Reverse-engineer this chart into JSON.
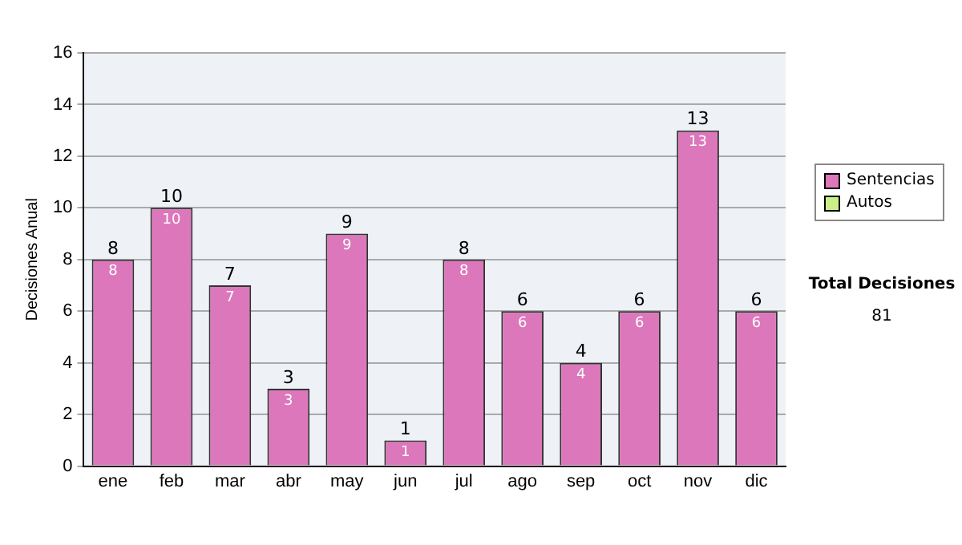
{
  "chart_data": {
    "type": "bar",
    "stacked": true,
    "ylabel": "Decisiones Anual",
    "categories": [
      "ene",
      "feb",
      "mar",
      "abr",
      "may",
      "jun",
      "jul",
      "ago",
      "sep",
      "oct",
      "nov",
      "dic"
    ],
    "series": [
      {
        "name": "Sentencias",
        "color": "#dd77bb",
        "values": [
          8,
          10,
          7,
          3,
          9,
          1,
          8,
          6,
          4,
          6,
          13,
          6
        ],
        "value_labels": [
          "8",
          "10",
          "7",
          "3",
          "9",
          "1",
          "8",
          "6",
          "4",
          "6",
          "13",
          "6"
        ]
      },
      {
        "name": "Autos",
        "color": "#ccee88",
        "values": [
          0,
          0,
          0,
          0,
          0,
          0,
          0,
          0,
          0,
          0,
          0,
          0
        ],
        "value_labels": [
          null,
          null,
          null,
          null,
          null,
          null,
          null,
          null,
          null,
          null,
          null,
          null
        ]
      }
    ],
    "totals": [
      "8",
      "10",
      "7",
      "3",
      "9",
      "1",
      "8",
      "6",
      "4",
      "6",
      "13",
      "6"
    ],
    "ylim": [
      0,
      16
    ],
    "yticks": [
      0,
      2,
      4,
      6,
      8,
      10,
      12,
      14,
      16
    ],
    "grid": "y",
    "legend": "right",
    "annotations": [
      "Total Decisiones",
      "81"
    ]
  }
}
